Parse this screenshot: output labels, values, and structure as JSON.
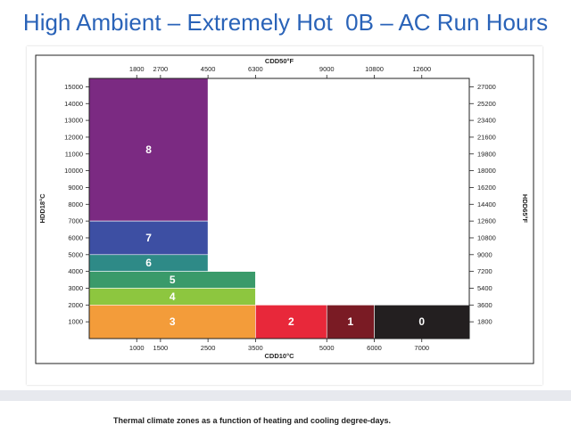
{
  "slide": {
    "title": "High Ambient – Extremely Hot  0B – AC Run Hours",
    "caption": "Thermal climate zones as a function of heating and cooling degree-days.",
    "colors": {
      "title": "#2a63b8",
      "footer": "#e7e9ee"
    }
  },
  "chart_data": {
    "type": "bar",
    "bottom_axis": {
      "label": "CDD10°C",
      "range": [
        0,
        8000
      ],
      "ticks": [
        "1000",
        "1500",
        "2500",
        "3500",
        "5000",
        "6000",
        "7000"
      ],
      "tick_values": [
        1000,
        1500,
        2500,
        3500,
        5000,
        6000,
        7000
      ]
    },
    "top_axis": {
      "label": "CDD50°F",
      "ticks": [
        "1800",
        "2700",
        "4500",
        "6300",
        "9000",
        "10800",
        "12600"
      ],
      "tick_values": [
        1800,
        2700,
        4500,
        6300,
        9000,
        10800,
        12600
      ]
    },
    "left_axis": {
      "label": "HDD18°C",
      "range": [
        0,
        15500
      ],
      "ticks": [
        "1000",
        "2000",
        "3000",
        "4000",
        "5000",
        "6000",
        "7000",
        "8000",
        "9000",
        "10000",
        "11000",
        "12000",
        "13000",
        "14000",
        "15000"
      ],
      "tick_values": [
        1000,
        2000,
        3000,
        4000,
        5000,
        6000,
        7000,
        8000,
        9000,
        10000,
        11000,
        12000,
        13000,
        14000,
        15000
      ]
    },
    "right_axis": {
      "label": "HDD65°F",
      "ticks": [
        "1800",
        "3600",
        "5400",
        "7200",
        "9000",
        "10800",
        "12600",
        "14400",
        "16200",
        "18000",
        "19800",
        "21600",
        "23400",
        "25200",
        "27000"
      ],
      "tick_values": [
        1800,
        3600,
        5400,
        7200,
        9000,
        10800,
        12600,
        14400,
        16200,
        18000,
        19800,
        21600,
        23400,
        25200,
        27000
      ]
    },
    "zones": [
      {
        "label": "8",
        "cdd_min": 0,
        "cdd_max": 2500,
        "hdd_min": 7000,
        "hdd_max": 15500,
        "color": "#7b2a82"
      },
      {
        "label": "7",
        "cdd_min": 0,
        "cdd_max": 2500,
        "hdd_min": 5000,
        "hdd_max": 7000,
        "color": "#3d4fa3"
      },
      {
        "label": "6",
        "cdd_min": 0,
        "cdd_max": 2500,
        "hdd_min": 4000,
        "hdd_max": 5000,
        "color": "#2e8a87"
      },
      {
        "label": "5",
        "cdd_min": 0,
        "cdd_max": 3500,
        "hdd_min": 3000,
        "hdd_max": 4000,
        "color": "#3a9a6a"
      },
      {
        "label": "4",
        "cdd_min": 0,
        "cdd_max": 3500,
        "hdd_min": 2000,
        "hdd_max": 3000,
        "color": "#8dc63f"
      },
      {
        "label": "3",
        "cdd_min": 0,
        "cdd_max": 3500,
        "hdd_min": 0,
        "hdd_max": 2000,
        "color": "#f39c3a"
      },
      {
        "label": "2",
        "cdd_min": 3500,
        "cdd_max": 5000,
        "hdd_min": 0,
        "hdd_max": 2000,
        "color": "#e8283a"
      },
      {
        "label": "1",
        "cdd_min": 5000,
        "cdd_max": 6000,
        "hdd_min": 0,
        "hdd_max": 2000,
        "color": "#7a1b24"
      },
      {
        "label": "0",
        "cdd_min": 6000,
        "cdd_max": 8000,
        "hdd_min": 0,
        "hdd_max": 2000,
        "color": "#231f20"
      }
    ]
  }
}
